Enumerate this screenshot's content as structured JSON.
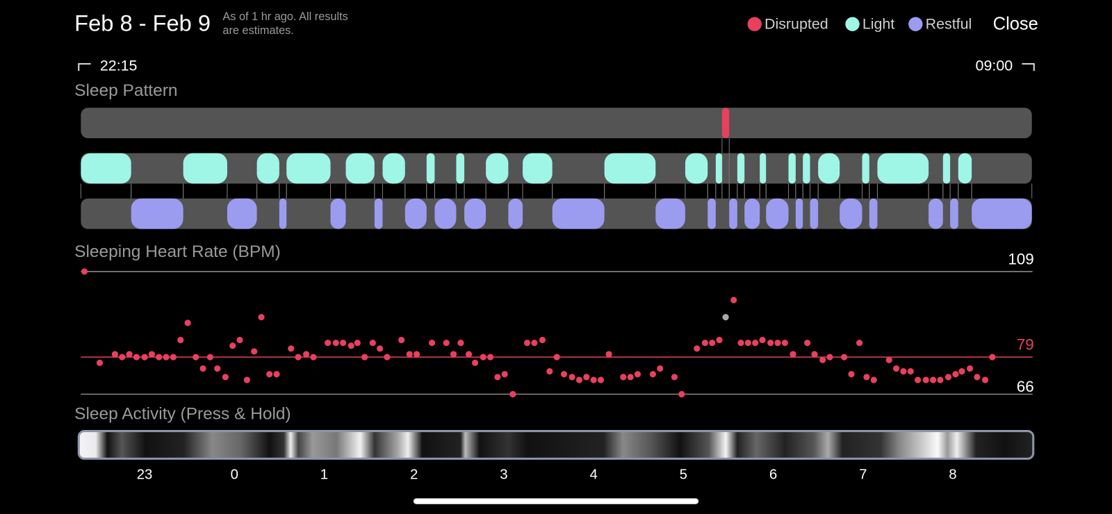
{
  "header": {
    "title": "Feb 8 - Feb 9",
    "note": [
      "As of 1 hr ago. All results",
      "are estimates."
    ],
    "close": "Close"
  },
  "legend": [
    {
      "label": "Disrupted",
      "color": "#e8405e",
      "segments": [
        [
          5.43,
          5.51
        ]
      ]
    },
    {
      "label": "Light",
      "color": "#9ff5e6",
      "segments": [
        [
          -1.71,
          -1.15
        ],
        [
          -0.57,
          -0.08
        ],
        [
          0.25,
          0.5
        ],
        [
          0.58,
          1.07
        ],
        [
          1.24,
          1.56
        ],
        [
          1.65,
          1.9
        ],
        [
          2.14,
          2.23
        ],
        [
          2.47,
          2.56
        ],
        [
          2.8,
          3.05
        ],
        [
          3.21,
          3.54
        ],
        [
          4.12,
          4.69
        ],
        [
          5.02,
          5.27
        ],
        [
          5.36,
          5.43
        ],
        [
          5.6,
          5.68
        ],
        [
          5.85,
          5.92
        ],
        [
          6.17,
          6.25
        ],
        [
          6.33,
          6.41
        ],
        [
          6.5,
          6.74
        ],
        [
          6.99,
          7.07
        ],
        [
          7.16,
          7.73
        ],
        [
          7.89,
          7.97
        ],
        [
          8.06,
          8.21
        ]
      ]
    },
    {
      "label": "Restful",
      "color": "#9b9cf0",
      "segments": [
        [
          -1.15,
          -0.57
        ],
        [
          -0.08,
          0.25
        ],
        [
          0.5,
          0.58
        ],
        [
          1.07,
          1.24
        ],
        [
          1.56,
          1.65
        ],
        [
          1.9,
          2.14
        ],
        [
          2.23,
          2.47
        ],
        [
          2.56,
          2.8
        ],
        [
          3.05,
          3.21
        ],
        [
          3.54,
          4.12
        ],
        [
          4.69,
          5.02
        ],
        [
          5.27,
          5.36
        ],
        [
          5.51,
          5.6
        ],
        [
          5.68,
          5.85
        ],
        [
          5.92,
          6.17
        ],
        [
          6.25,
          6.33
        ],
        [
          6.41,
          6.5
        ],
        [
          6.74,
          6.99
        ],
        [
          7.07,
          7.16
        ],
        [
          7.73,
          7.89
        ],
        [
          7.97,
          8.06
        ],
        [
          8.21,
          8.88
        ]
      ]
    }
  ],
  "range": {
    "start": "22:15",
    "end": "09:00"
  },
  "xlim": [
    -1.71,
    8.88
  ],
  "sleep_pattern": {
    "title": "Sleep Pattern"
  },
  "heart_rate": {
    "title": "Sleeping Heart Rate (BPM)",
    "ylim": [
      66,
      109
    ],
    "reference_lines": [
      {
        "value": 109,
        "color": "#8a8a8a",
        "label_color": "#ffffff"
      },
      {
        "value": 79,
        "color": "#e8405e",
        "label_color": "#e8405e"
      },
      {
        "value": 66,
        "color": "#8a8a8a",
        "label_color": "#ffffff"
      }
    ],
    "points": {
      "color": "#e8405e",
      "x": [
        -1.67,
        -1.5,
        -1.33,
        -1.25,
        -1.17,
        -1.09,
        -1.0,
        -0.92,
        -0.84,
        -0.76,
        -0.68,
        -0.6,
        -0.52,
        -0.43,
        -0.35,
        -0.27,
        -0.19,
        -0.1,
        -0.02,
        0.06,
        0.14,
        0.22,
        0.3,
        0.39,
        0.47,
        0.63,
        0.71,
        0.8,
        0.88,
        1.04,
        1.13,
        1.21,
        1.3,
        1.37,
        1.45,
        1.54,
        1.62,
        1.7,
        1.86,
        1.95,
        2.03,
        2.2,
        2.36,
        2.44,
        2.52,
        2.61,
        2.68,
        2.77,
        2.85,
        2.93,
        3.01,
        3.1,
        3.26,
        3.34,
        3.43,
        3.51,
        3.59,
        3.67,
        3.76,
        3.84,
        3.92,
        4.0,
        4.08,
        4.17,
        4.33,
        4.41,
        4.49,
        4.66,
        4.74,
        4.9,
        4.98,
        5.15,
        5.24,
        5.32,
        5.4,
        5.56,
        5.64,
        5.72,
        5.8,
        5.88,
        5.97,
        6.05,
        6.13,
        6.22,
        6.38,
        6.46,
        6.55,
        6.63,
        6.79,
        6.87,
        6.96,
        7.04,
        7.12,
        7.29,
        7.37,
        7.45,
        7.53,
        7.61,
        7.7,
        7.78,
        7.86,
        7.95,
        8.03,
        8.1,
        8.19,
        8.27,
        8.36,
        8.44
      ],
      "y": [
        109,
        77,
        80,
        79,
        80,
        79,
        79,
        80,
        79,
        79,
        79,
        85,
        91,
        79,
        75,
        79,
        75,
        72,
        83,
        85,
        71,
        81,
        93,
        73,
        73,
        82,
        79,
        80,
        79,
        84,
        84,
        84,
        83,
        84,
        79,
        84,
        82,
        79,
        85,
        80,
        80,
        84,
        84,
        80,
        84,
        80,
        77,
        79,
        79,
        72,
        73,
        66,
        84,
        84,
        85,
        74,
        79,
        73,
        72,
        71,
        72,
        71,
        71,
        80,
        72,
        72,
        73,
        73,
        75,
        72,
        66,
        82,
        84,
        84,
        85,
        99,
        84,
        84,
        84,
        85,
        84,
        84,
        84,
        80,
        84,
        80,
        78,
        79,
        79,
        73,
        84,
        72,
        71,
        78,
        75,
        74,
        74,
        71,
        71,
        71,
        71,
        72,
        73,
        74,
        75,
        72,
        71,
        79
      ]
    },
    "highlight": {
      "x": 5.47,
      "y": 93,
      "color": "#aaaaaa"
    }
  },
  "activity": {
    "title": "Sleep Activity (Press & Hold)",
    "xticks": [
      {
        "value": -1,
        "label": "23"
      },
      0,
      1,
      2,
      3,
      4,
      5,
      6,
      7,
      8
    ]
  }
}
